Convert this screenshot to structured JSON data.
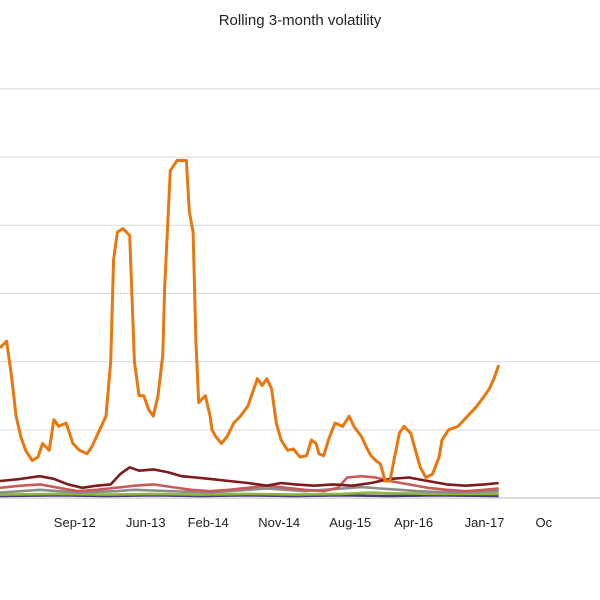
{
  "chart_data": {
    "type": "line",
    "title": "Rolling 3-month volatility",
    "xlabel": "",
    "ylabel": "",
    "x_ticks": [
      {
        "label": "Sep-12",
        "x": 2012.67
      },
      {
        "label": "Jun-13",
        "x": 2013.42
      },
      {
        "label": "Feb-14",
        "x": 2014.08
      },
      {
        "label": "Nov-14",
        "x": 2014.83
      },
      {
        "label": "Aug-15",
        "x": 2015.58
      },
      {
        "label": "Apr-16",
        "x": 2016.25
      },
      {
        "label": "Jan-17",
        "x": 2017.0
      },
      {
        "label": "Oc",
        "x": 2017.75
      }
    ],
    "xlim": [
      2011.88,
      2018.22
    ],
    "ylim": [
      0,
      6.6
    ],
    "grid": "horizontal",
    "legend": "none",
    "series": [
      {
        "color": "#e8770e",
        "points": [
          [
            2011.88,
            2.2
          ],
          [
            2011.95,
            2.3
          ],
          [
            2012.0,
            1.8
          ],
          [
            2012.05,
            1.2
          ],
          [
            2012.1,
            0.9
          ],
          [
            2012.15,
            0.7
          ],
          [
            2012.22,
            0.55
          ],
          [
            2012.28,
            0.6
          ],
          [
            2012.33,
            0.8
          ],
          [
            2012.4,
            0.7
          ],
          [
            2012.45,
            1.15
          ],
          [
            2012.5,
            1.05
          ],
          [
            2012.58,
            1.1
          ],
          [
            2012.65,
            0.8
          ],
          [
            2012.72,
            0.7
          ],
          [
            2012.8,
            0.65
          ],
          [
            2012.85,
            0.75
          ],
          [
            2012.9,
            0.9
          ],
          [
            2013.0,
            1.2
          ],
          [
            2013.05,
            2.0
          ],
          [
            2013.08,
            3.5
          ],
          [
            2013.12,
            3.9
          ],
          [
            2013.18,
            3.95
          ],
          [
            2013.25,
            3.85
          ],
          [
            2013.3,
            2.0
          ],
          [
            2013.35,
            1.5
          ],
          [
            2013.4,
            1.5
          ],
          [
            2013.45,
            1.3
          ],
          [
            2013.5,
            1.2
          ],
          [
            2013.55,
            1.5
          ],
          [
            2013.6,
            2.1
          ],
          [
            2013.62,
            3.1
          ],
          [
            2013.68,
            4.8
          ],
          [
            2013.75,
            4.95
          ],
          [
            2013.85,
            4.95
          ],
          [
            2013.88,
            4.2
          ],
          [
            2013.92,
            3.9
          ],
          [
            2013.95,
            2.3
          ],
          [
            2013.98,
            1.4
          ],
          [
            2014.05,
            1.5
          ],
          [
            2014.1,
            1.2
          ],
          [
            2014.12,
            1.0
          ],
          [
            2014.16,
            0.9
          ],
          [
            2014.22,
            0.8
          ],
          [
            2014.28,
            0.9
          ],
          [
            2014.35,
            1.1
          ],
          [
            2014.42,
            1.2
          ],
          [
            2014.5,
            1.35
          ],
          [
            2014.55,
            1.55
          ],
          [
            2014.6,
            1.75
          ],
          [
            2014.65,
            1.65
          ],
          [
            2014.7,
            1.75
          ],
          [
            2014.75,
            1.6
          ],
          [
            2014.8,
            1.1
          ],
          [
            2014.85,
            0.85
          ],
          [
            2014.92,
            0.7
          ],
          [
            2014.98,
            0.72
          ],
          [
            2015.05,
            0.6
          ],
          [
            2015.12,
            0.62
          ],
          [
            2015.17,
            0.85
          ],
          [
            2015.22,
            0.8
          ],
          [
            2015.25,
            0.65
          ],
          [
            2015.3,
            0.62
          ],
          [
            2015.35,
            0.85
          ],
          [
            2015.42,
            1.1
          ],
          [
            2015.5,
            1.05
          ],
          [
            2015.57,
            1.2
          ],
          [
            2015.62,
            1.05
          ],
          [
            2015.7,
            0.9
          ],
          [
            2015.75,
            0.75
          ],
          [
            2015.8,
            0.62
          ],
          [
            2015.85,
            0.55
          ],
          [
            2015.9,
            0.5
          ],
          [
            2015.95,
            0.25
          ],
          [
            2016.0,
            0.25
          ],
          [
            2016.05,
            0.6
          ],
          [
            2016.1,
            0.95
          ],
          [
            2016.15,
            1.05
          ],
          [
            2016.22,
            0.95
          ],
          [
            2016.28,
            0.65
          ],
          [
            2016.32,
            0.45
          ],
          [
            2016.38,
            0.3
          ],
          [
            2016.45,
            0.35
          ],
          [
            2016.52,
            0.6
          ],
          [
            2016.55,
            0.85
          ],
          [
            2016.62,
            1.0
          ],
          [
            2016.72,
            1.05
          ],
          [
            2016.82,
            1.2
          ],
          [
            2016.92,
            1.35
          ],
          [
            2017.0,
            1.5
          ],
          [
            2017.05,
            1.6
          ],
          [
            2017.1,
            1.75
          ],
          [
            2017.15,
            1.95
          ]
        ]
      },
      {
        "color": "#7b1b1b",
        "points": [
          [
            2011.88,
            0.25
          ],
          [
            2012.1,
            0.28
          ],
          [
            2012.3,
            0.32
          ],
          [
            2012.45,
            0.28
          ],
          [
            2012.6,
            0.2
          ],
          [
            2012.75,
            0.15
          ],
          [
            2012.9,
            0.18
          ],
          [
            2013.05,
            0.2
          ],
          [
            2013.15,
            0.35
          ],
          [
            2013.25,
            0.45
          ],
          [
            2013.35,
            0.4
          ],
          [
            2013.5,
            0.42
          ],
          [
            2013.65,
            0.38
          ],
          [
            2013.8,
            0.32
          ],
          [
            2013.95,
            0.3
          ],
          [
            2014.1,
            0.28
          ],
          [
            2014.3,
            0.25
          ],
          [
            2014.5,
            0.22
          ],
          [
            2014.7,
            0.18
          ],
          [
            2014.85,
            0.22
          ],
          [
            2015.0,
            0.2
          ],
          [
            2015.2,
            0.18
          ],
          [
            2015.4,
            0.2
          ],
          [
            2015.6,
            0.18
          ],
          [
            2015.8,
            0.22
          ],
          [
            2016.0,
            0.28
          ],
          [
            2016.2,
            0.3
          ],
          [
            2016.4,
            0.25
          ],
          [
            2016.6,
            0.2
          ],
          [
            2016.8,
            0.18
          ],
          [
            2017.0,
            0.2
          ],
          [
            2017.15,
            0.22
          ]
        ]
      },
      {
        "color": "#c85a5a",
        "points": [
          [
            2011.88,
            0.15
          ],
          [
            2012.1,
            0.18
          ],
          [
            2012.3,
            0.2
          ],
          [
            2012.5,
            0.15
          ],
          [
            2012.7,
            0.1
          ],
          [
            2012.9,
            0.12
          ],
          [
            2013.1,
            0.15
          ],
          [
            2013.3,
            0.18
          ],
          [
            2013.5,
            0.2
          ],
          [
            2013.7,
            0.16
          ],
          [
            2013.9,
            0.12
          ],
          [
            2014.1,
            0.1
          ],
          [
            2014.3,
            0.12
          ],
          [
            2014.5,
            0.15
          ],
          [
            2014.7,
            0.18
          ],
          [
            2014.9,
            0.15
          ],
          [
            2015.1,
            0.12
          ],
          [
            2015.3,
            0.1
          ],
          [
            2015.45,
            0.15
          ],
          [
            2015.55,
            0.3
          ],
          [
            2015.7,
            0.32
          ],
          [
            2015.85,
            0.3
          ],
          [
            2016.0,
            0.25
          ],
          [
            2016.2,
            0.2
          ],
          [
            2016.4,
            0.15
          ],
          [
            2016.6,
            0.12
          ],
          [
            2016.8,
            0.1
          ],
          [
            2017.0,
            0.12
          ],
          [
            2017.15,
            0.14
          ]
        ]
      },
      {
        "color": "#8c8c8c",
        "points": [
          [
            2011.88,
            0.08
          ],
          [
            2012.1,
            0.1
          ],
          [
            2012.3,
            0.12
          ],
          [
            2012.5,
            0.1
          ],
          [
            2012.7,
            0.08
          ],
          [
            2012.9,
            0.09
          ],
          [
            2013.1,
            0.1
          ],
          [
            2013.3,
            0.12
          ],
          [
            2013.5,
            0.11
          ],
          [
            2013.7,
            0.1
          ],
          [
            2013.9,
            0.09
          ],
          [
            2014.1,
            0.08
          ],
          [
            2014.3,
            0.1
          ],
          [
            2014.5,
            0.12
          ],
          [
            2014.7,
            0.14
          ],
          [
            2014.9,
            0.12
          ],
          [
            2015.1,
            0.1
          ],
          [
            2015.3,
            0.12
          ],
          [
            2015.5,
            0.14
          ],
          [
            2015.7,
            0.16
          ],
          [
            2015.9,
            0.14
          ],
          [
            2016.1,
            0.12
          ],
          [
            2016.3,
            0.1
          ],
          [
            2016.5,
            0.09
          ],
          [
            2016.7,
            0.08
          ],
          [
            2016.9,
            0.09
          ],
          [
            2017.15,
            0.1
          ]
        ]
      },
      {
        "color": "#8db83a",
        "points": [
          [
            2011.88,
            0.05
          ],
          [
            2012.5,
            0.06
          ],
          [
            2013.0,
            0.05
          ],
          [
            2013.5,
            0.06
          ],
          [
            2014.0,
            0.05
          ],
          [
            2014.5,
            0.06
          ],
          [
            2015.0,
            0.05
          ],
          [
            2015.5,
            0.06
          ],
          [
            2015.8,
            0.08
          ],
          [
            2016.0,
            0.07
          ],
          [
            2016.5,
            0.06
          ],
          [
            2017.15,
            0.06
          ]
        ]
      },
      {
        "color": "#4a3a7a",
        "points": [
          [
            2011.88,
            0.03
          ],
          [
            2012.5,
            0.04
          ],
          [
            2013.0,
            0.03
          ],
          [
            2013.5,
            0.04
          ],
          [
            2014.0,
            0.03
          ],
          [
            2014.5,
            0.04
          ],
          [
            2015.0,
            0.03
          ],
          [
            2015.5,
            0.04
          ],
          [
            2016.0,
            0.03
          ],
          [
            2016.5,
            0.04
          ],
          [
            2017.15,
            0.03
          ]
        ]
      }
    ]
  }
}
